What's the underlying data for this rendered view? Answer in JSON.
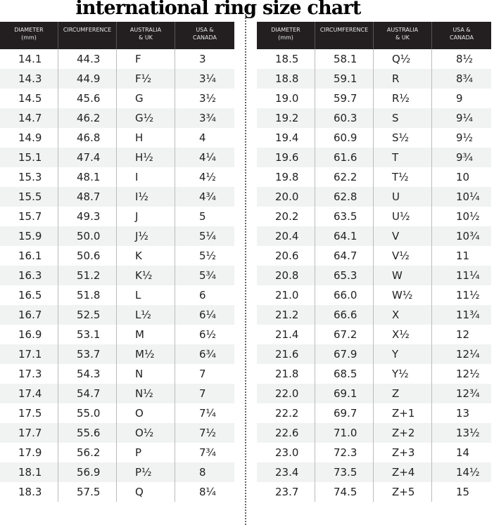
{
  "title": "international ring size chart",
  "headers": [
    "DIAMETER\n(mm)",
    "CIRCUMFERENCE",
    "AUSTRALIA\n& UK",
    "USA &\nCANADA"
  ],
  "colors": {
    "header_bg": "#231f20",
    "alt_row": "#f1f2f2"
  },
  "left_rows": [
    [
      "14.1",
      "44.3",
      "F",
      "3"
    ],
    [
      "14.3",
      "44.9",
      "F½",
      "3¼"
    ],
    [
      "14.5",
      "45.6",
      "G",
      "3½"
    ],
    [
      "14.7",
      "46.2",
      "G½",
      "3¾"
    ],
    [
      "14.9",
      "46.8",
      "H",
      "4"
    ],
    [
      "15.1",
      "47.4",
      "H½",
      "4¼"
    ],
    [
      "15.3",
      "48.1",
      "I",
      "4½"
    ],
    [
      "15.5",
      "48.7",
      "I½",
      "4¾"
    ],
    [
      "15.7",
      "49.3",
      "J",
      "5"
    ],
    [
      "15.9",
      "50.0",
      "J½",
      "5¼"
    ],
    [
      "16.1",
      "50.6",
      "K",
      "5½"
    ],
    [
      "16.3",
      "51.2",
      "K½",
      "5¾"
    ],
    [
      "16.5",
      "51.8",
      "L",
      "6"
    ],
    [
      "16.7",
      "52.5",
      "L½",
      "6¼"
    ],
    [
      "16.9",
      "53.1",
      "M",
      "6½"
    ],
    [
      "17.1",
      "53.7",
      "M½",
      "6¾"
    ],
    [
      "17.3",
      "54.3",
      "N",
      "7"
    ],
    [
      "17.4",
      "54.7",
      "N½",
      "7"
    ],
    [
      "17.5",
      "55.0",
      "O",
      "7¼"
    ],
    [
      "17.7",
      "55.6",
      "O½",
      "7½"
    ],
    [
      "17.9",
      "56.2",
      "P",
      "7¾"
    ],
    [
      "18.1",
      "56.9",
      "P½",
      "8"
    ],
    [
      "18.3",
      "57.5",
      "Q",
      "8¼"
    ]
  ],
  "right_rows": [
    [
      "18.5",
      "58.1",
      "Q½",
      "8½"
    ],
    [
      "18.8",
      "59.1",
      "R",
      "8¾"
    ],
    [
      "19.0",
      "59.7",
      "R½",
      "9"
    ],
    [
      "19.2",
      "60.3",
      "S",
      "9¼"
    ],
    [
      "19.4",
      "60.9",
      "S½",
      "9½"
    ],
    [
      "19.6",
      "61.6",
      "T",
      "9¾"
    ],
    [
      "19.8",
      "62.2",
      "T½",
      "10"
    ],
    [
      "20.0",
      "62.8",
      "U",
      "10¼"
    ],
    [
      "20.2",
      "63.5",
      "U½",
      "10½"
    ],
    [
      "20.4",
      "64.1",
      "V",
      "10¾"
    ],
    [
      "20.6",
      "64.7",
      "V½",
      "11"
    ],
    [
      "20.8",
      "65.3",
      "W",
      "11¼"
    ],
    [
      "21.0",
      "66.0",
      "W½",
      "11½"
    ],
    [
      "21.2",
      "66.6",
      "X",
      "11¾"
    ],
    [
      "21.4",
      "67.2",
      "X½",
      "12"
    ],
    [
      "21.6",
      "67.9",
      "Y",
      "12¼"
    ],
    [
      "21.8",
      "68.5",
      "Y½",
      "12½"
    ],
    [
      "22.0",
      "69.1",
      "Z",
      "12¾"
    ],
    [
      "22.2",
      "69.7",
      "Z+1",
      "13"
    ],
    [
      "22.6",
      "71.0",
      "Z+2",
      "13½"
    ],
    [
      "23.0",
      "72.3",
      "Z+3",
      "14"
    ],
    [
      "23.4",
      "73.5",
      "Z+4",
      "14½"
    ],
    [
      "23.7",
      "74.5",
      "Z+5",
      "15"
    ]
  ]
}
